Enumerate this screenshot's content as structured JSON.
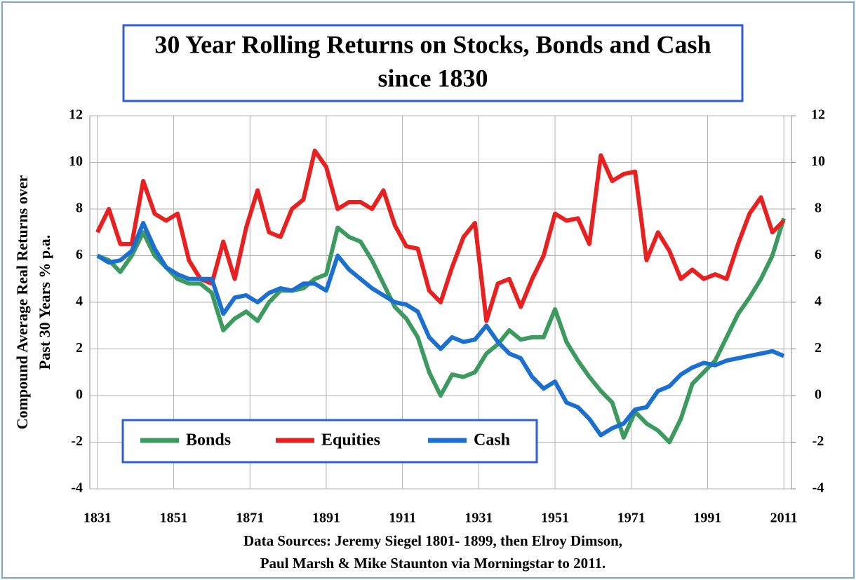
{
  "chart_data": {
    "type": "line",
    "title": [
      "30 Year Rolling Returns on Stocks, Bonds and Cash",
      "since 1830"
    ],
    "y_label": [
      "Compound Average Real Returns over",
      "Past 30 Years % p.a."
    ],
    "source": [
      "Data Sources: Jeremy Siegel 1801- 1899, then Elroy Dimson,",
      "Paul Marsh & Mike Staunton via Morningstar to 2011."
    ],
    "x": [
      1831,
      1834,
      1837,
      1840,
      1843,
      1846,
      1849,
      1852,
      1855,
      1858,
      1861,
      1864,
      1867,
      1870,
      1873,
      1876,
      1879,
      1882,
      1885,
      1888,
      1891,
      1894,
      1897,
      1900,
      1903,
      1906,
      1909,
      1912,
      1915,
      1918,
      1921,
      1924,
      1927,
      1930,
      1933,
      1936,
      1939,
      1942,
      1945,
      1948,
      1951,
      1954,
      1957,
      1960,
      1963,
      1966,
      1969,
      1972,
      1975,
      1978,
      1981,
      1984,
      1987,
      1990,
      1993,
      1996,
      1999,
      2002,
      2005,
      2008,
      2011
    ],
    "series": [
      {
        "name": "Bonds",
        "color": "#3c9a5f",
        "values": [
          6.0,
          5.8,
          5.3,
          6.0,
          7.0,
          6.0,
          5.5,
          5.0,
          4.8,
          4.8,
          4.4,
          2.8,
          3.3,
          3.6,
          3.2,
          4.0,
          4.5,
          4.5,
          4.6,
          5.0,
          5.2,
          7.2,
          6.8,
          6.6,
          5.8,
          4.8,
          3.8,
          3.3,
          2.5,
          1.0,
          0.0,
          0.9,
          0.8,
          1.0,
          1.8,
          2.2,
          2.8,
          2.4,
          2.5,
          2.5,
          3.7,
          2.3,
          1.5,
          0.8,
          0.2,
          -0.3,
          -1.8,
          -0.7,
          -1.2,
          -1.5,
          -2.0,
          -1.0,
          0.5,
          1.0,
          1.5,
          2.5,
          3.5,
          4.2,
          5.0,
          6.0,
          7.6
        ]
      },
      {
        "name": "Equities",
        "color": "#e8201f",
        "values": [
          7.0,
          8.0,
          6.5,
          6.5,
          9.2,
          7.8,
          7.5,
          7.8,
          5.8,
          5.0,
          4.8,
          6.6,
          5.0,
          7.2,
          8.8,
          7.0,
          6.8,
          8.0,
          8.4,
          10.5,
          9.8,
          8.0,
          8.3,
          8.3,
          8.0,
          8.8,
          7.3,
          6.4,
          6.3,
          4.5,
          4.0,
          5.5,
          6.8,
          7.4,
          3.2,
          4.8,
          5.0,
          3.8,
          5.0,
          6.0,
          7.8,
          7.5,
          7.6,
          6.5,
          10.3,
          9.2,
          9.5,
          9.6,
          5.8,
          7.0,
          6.2,
          5.0,
          5.4,
          5.0,
          5.2,
          5.0,
          6.5,
          7.8,
          8.5,
          7.0,
          7.5
        ]
      },
      {
        "name": "Cash",
        "color": "#1a6fd0",
        "values": [
          6.0,
          5.7,
          5.8,
          6.2,
          7.4,
          6.3,
          5.5,
          5.2,
          5.0,
          5.0,
          5.0,
          3.5,
          4.2,
          4.3,
          4.0,
          4.4,
          4.6,
          4.5,
          4.8,
          4.8,
          4.5,
          6.0,
          5.4,
          5.0,
          4.6,
          4.3,
          4.0,
          3.9,
          3.6,
          2.5,
          2.0,
          2.5,
          2.3,
          2.4,
          3.0,
          2.3,
          1.8,
          1.6,
          0.8,
          0.3,
          0.6,
          -0.3,
          -0.5,
          -1.0,
          -1.7,
          -1.4,
          -1.2,
          -0.6,
          -0.5,
          0.2,
          0.4,
          0.9,
          1.2,
          1.4,
          1.3,
          1.5,
          1.6,
          1.7,
          1.8,
          1.9,
          1.7
        ]
      }
    ],
    "xlim": [
      1829,
      2013
    ],
    "xticks": [
      1831,
      1851,
      1871,
      1891,
      1911,
      1931,
      1951,
      1971,
      1991,
      2011
    ],
    "ylim": [
      -4,
      12
    ],
    "yticks": [
      -4,
      -2,
      0,
      2,
      4,
      6,
      8,
      10,
      12
    ],
    "y2lim": [
      -4,
      12
    ],
    "y2ticks": [
      -4,
      -2,
      0,
      2,
      4,
      6,
      8,
      10,
      12
    ],
    "grid": true
  }
}
